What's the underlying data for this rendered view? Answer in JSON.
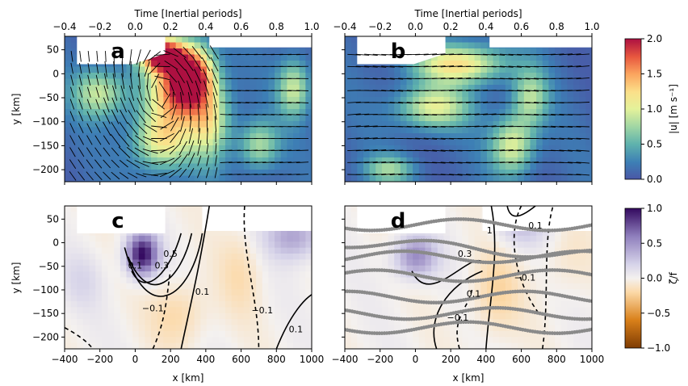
{
  "figure": {
    "top_xlabel": "Time [Inertial periods]",
    "bottom_xlabel": "x [km]",
    "ylabel": "y [km]"
  },
  "chart_data": [
    {
      "type": "heatmap",
      "panel": "a",
      "x_ticks": [
        "−400",
        "−200",
        "0",
        "200",
        "400",
        "600",
        "800",
        "1000"
      ],
      "xlim": [
        -400,
        1000
      ],
      "y_ticks": [
        "50",
        "0",
        "−50",
        "−100",
        "−150",
        "−200"
      ],
      "ylim": [
        -225,
        78
      ],
      "time_ticks": [
        "−0.4",
        "−0.2",
        "0.0",
        "0.2",
        "0.4",
        "0.6",
        "0.8",
        "1.0"
      ],
      "time_lim": [
        -0.4,
        1.0
      ],
      "colorbar": "speed",
      "features": [
        {
          "x": 150,
          "y": 40,
          "value": 2.0,
          "sx": 120,
          "sy": 35
        },
        {
          "x": 320,
          "y": 0,
          "value": 1.6,
          "sx": 120,
          "sy": 60
        },
        {
          "x": 230,
          "y": -40,
          "value": 1.2,
          "sx": 180,
          "sy": 70
        },
        {
          "x": 150,
          "y": -140,
          "value": 1.0,
          "sx": 160,
          "sy": 60
        },
        {
          "x": 420,
          "y": -100,
          "value": 0.9,
          "sx": 120,
          "sy": 80
        },
        {
          "x": 900,
          "y": -30,
          "value": 0.8,
          "sx": 90,
          "sy": 60
        },
        {
          "x": 700,
          "y": -150,
          "value": 0.7,
          "sx": 110,
          "sy": 50
        },
        {
          "x": -200,
          "y": -40,
          "value": 0.8,
          "sx": 150,
          "sy": 50
        }
      ],
      "quiver": true
    },
    {
      "type": "heatmap",
      "panel": "b",
      "x_ticks": [
        "−400",
        "−200",
        "0",
        "200",
        "400",
        "600",
        "800",
        "1000"
      ],
      "xlim": [
        -400,
        1000
      ],
      "y_ticks": [
        "50",
        "0",
        "−50",
        "−100",
        "−150",
        "−200"
      ],
      "ylim": [
        -225,
        78
      ],
      "time_ticks": [
        "−0.4",
        "−0.2",
        "0.0",
        "0.2",
        "0.4",
        "0.6",
        "0.8",
        "1.0"
      ],
      "time_lim": [
        -0.4,
        1.0
      ],
      "colorbar": "speed",
      "features": [
        {
          "x": 250,
          "y": 20,
          "value": 1.1,
          "sx": 250,
          "sy": 40
        },
        {
          "x": 100,
          "y": -70,
          "value": 0.9,
          "sx": 200,
          "sy": 45
        },
        {
          "x": 550,
          "y": -150,
          "value": 0.9,
          "sx": 120,
          "sy": 60
        },
        {
          "x": 650,
          "y": -50,
          "value": 0.7,
          "sx": 100,
          "sy": 60
        },
        {
          "x": -150,
          "y": -200,
          "value": 0.6,
          "sx": 140,
          "sy": 30
        }
      ],
      "quiver": true
    },
    {
      "type": "heatmap",
      "panel": "c",
      "x_ticks": [
        "−400",
        "−200",
        "0",
        "200",
        "400",
        "600",
        "800",
        "1000"
      ],
      "xlim": [
        -400,
        1000
      ],
      "y_ticks": [
        "50",
        "0",
        "−50",
        "−100",
        "−150",
        "−200"
      ],
      "ylim": [
        -225,
        78
      ],
      "colorbar": "vorticity",
      "features": [
        {
          "x": 40,
          "y": -25,
          "value": 1.0,
          "sx": 90,
          "sy": 45
        },
        {
          "x": 900,
          "y": 15,
          "value": 0.45,
          "sx": 160,
          "sy": 50
        },
        {
          "x": 250,
          "y": -150,
          "value": -0.2,
          "sx": 160,
          "sy": 70
        },
        {
          "x": 600,
          "y": -60,
          "value": -0.15,
          "sx": 120,
          "sy": 90
        },
        {
          "x": -300,
          "y": -80,
          "value": 0.15,
          "sx": 120,
          "sy": 60
        }
      ],
      "contour_labels": [
        "0.1",
        "0.5",
        "0.3",
        "−0.1",
        "0.1",
        "−0.1",
        "0.1"
      ]
    },
    {
      "type": "heatmap",
      "panel": "d",
      "x_ticks": [
        "−400",
        "−200",
        "0",
        "200",
        "400",
        "600",
        "800",
        "1000"
      ],
      "xlim": [
        -400,
        1000
      ],
      "y_ticks": [
        "50",
        "0",
        "−50",
        "−100",
        "−150",
        "−200"
      ],
      "ylim": [
        -225,
        78
      ],
      "colorbar": "vorticity",
      "features": [
        {
          "x": 0,
          "y": -30,
          "value": 0.55,
          "sx": 120,
          "sy": 45
        },
        {
          "x": 600,
          "y": 30,
          "value": 0.25,
          "sx": 150,
          "sy": 40
        },
        {
          "x": 450,
          "y": -110,
          "value": -0.2,
          "sx": 140,
          "sy": 90
        },
        {
          "x": 850,
          "y": -40,
          "value": -0.1,
          "sx": 140,
          "sy": 80
        }
      ],
      "contour_labels": [
        "1",
        "0.1",
        "0.3",
        "−0.1",
        "0.1",
        "−0.1"
      ]
    }
  ],
  "colorbars": [
    {
      "id": "speed",
      "label": "|u| [m s⁻¹]",
      "ticks": [
        "2.0",
        "1.5",
        "1.0",
        "0.5",
        "0.0"
      ],
      "range": [
        0,
        2.0
      ],
      "colormap": "Spectral_r"
    },
    {
      "id": "vorticity",
      "label": "ζ/f",
      "ticks": [
        "1.0",
        "0.5",
        "0.0",
        "−0.5",
        "−1.0"
      ],
      "range": [
        -1.0,
        1.0
      ],
      "colormap": "PuOr_r"
    }
  ],
  "panel_letters": [
    "a",
    "b",
    "c",
    "d"
  ]
}
